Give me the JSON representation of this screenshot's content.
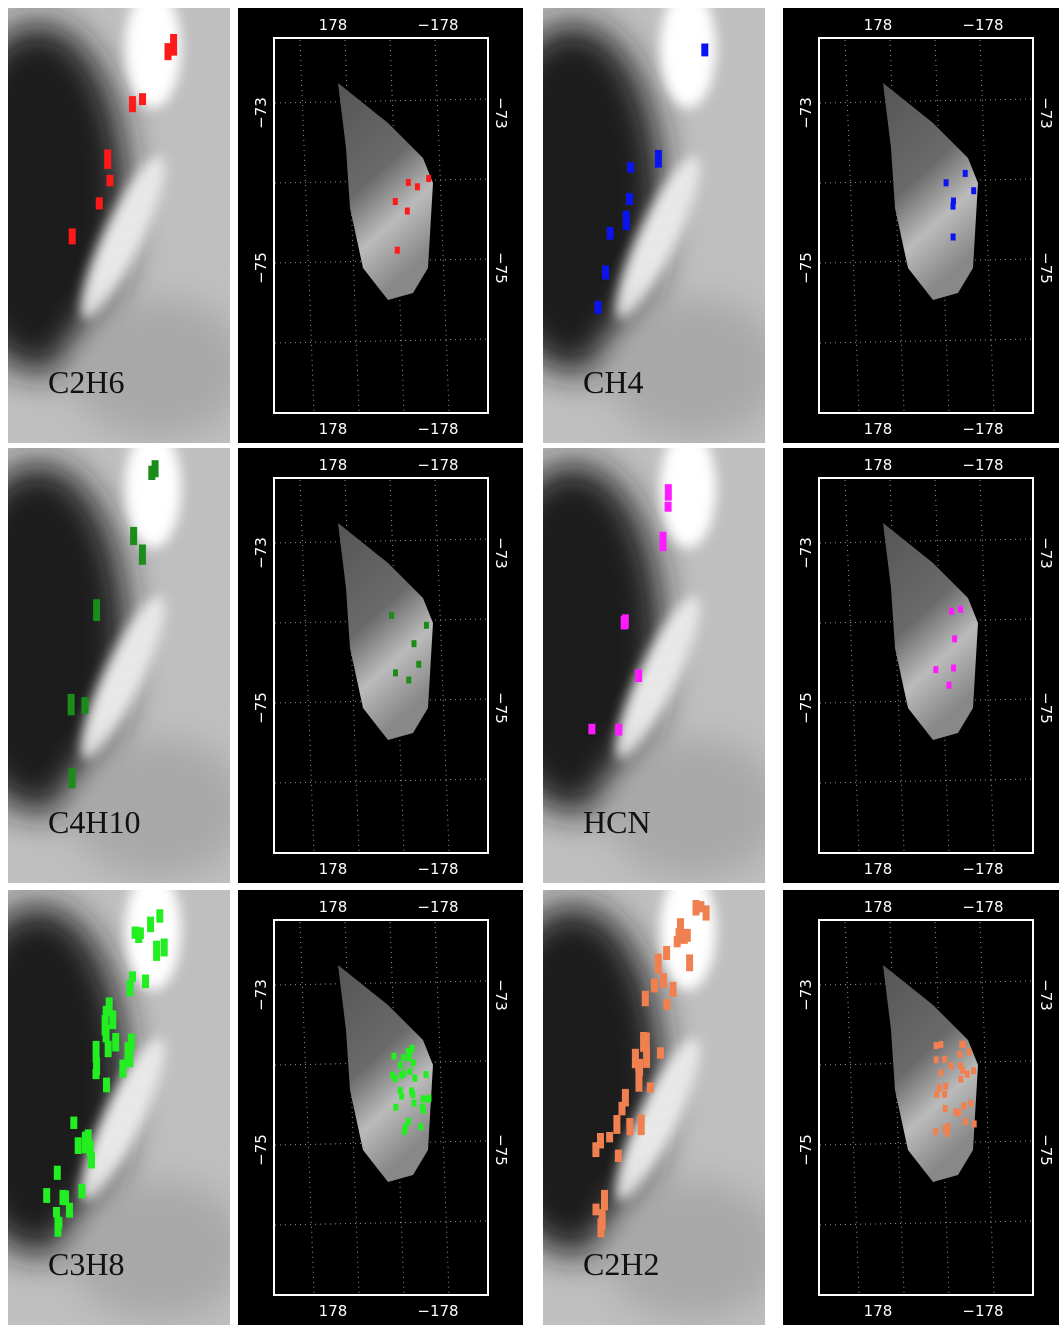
{
  "panels": [
    {
      "label": "C2H6",
      "color": "#ff1a1a"
    },
    {
      "label": "CH4",
      "color": "#0a14f0"
    },
    {
      "label": "C4H10",
      "color": "#1a8c1a"
    },
    {
      "label": "HCN",
      "color": "#ff1aff"
    },
    {
      "label": "C3H8",
      "color": "#22ee22"
    },
    {
      "label": "C2H2",
      "color": "#f08050"
    }
  ],
  "map_ticks": {
    "lon": [
      "178",
      "−178"
    ],
    "lat": [
      "−73",
      "−75"
    ]
  }
}
